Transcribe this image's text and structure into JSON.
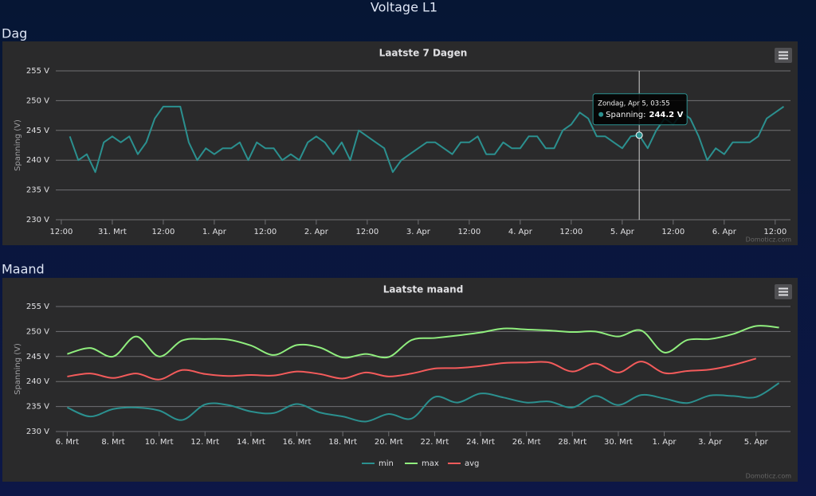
{
  "page": {
    "title": "Voltage L1",
    "sections": [
      "Dag",
      "Maand"
    ]
  },
  "chart_data": [
    {
      "type": "line",
      "title": "Laatste 7 Dagen",
      "y_label": "Spanning (V)",
      "credits": "Domoticz.com",
      "color": "#2b908f",
      "grid": true,
      "x": [
        2,
        4,
        6,
        8,
        10,
        12,
        14,
        16,
        18,
        20,
        22,
        24,
        26,
        28,
        30,
        32,
        34,
        36,
        38,
        40,
        42,
        44,
        46,
        48,
        50,
        52,
        54,
        56,
        58,
        60,
        62,
        64,
        66,
        68,
        70,
        72,
        74,
        76,
        78,
        80,
        82,
        84,
        86,
        88,
        90,
        92,
        94,
        96,
        98,
        100,
        102,
        104,
        106,
        108,
        110,
        112,
        114,
        116,
        118,
        120,
        122,
        124,
        126,
        128,
        130,
        132,
        134,
        136,
        138,
        140,
        142,
        144,
        146,
        148,
        150,
        152,
        154,
        156,
        158,
        160,
        162,
        164,
        166,
        168,
        170
      ],
      "values": [
        244,
        240,
        241,
        238,
        243,
        244,
        243,
        244,
        241,
        243,
        247,
        249,
        249,
        249,
        243,
        240,
        242,
        241,
        242,
        242,
        243,
        240,
        243,
        242,
        242,
        240,
        241,
        240,
        243,
        244,
        243,
        241,
        243,
        240,
        245,
        244,
        243,
        242,
        238,
        240,
        241,
        242,
        243,
        243,
        242,
        241,
        243,
        243,
        244,
        241,
        241,
        243,
        242,
        242,
        244,
        244,
        242,
        242,
        245,
        246,
        248,
        247,
        244,
        244,
        243,
        242,
        244,
        244.2,
        242,
        245,
        247,
        246,
        248,
        247,
        244,
        240,
        242,
        241,
        243,
        243,
        243,
        244,
        247,
        248,
        249
      ],
      "xlim": [
        -1.3,
        171.6
      ],
      "xticks": [
        {
          "value": 0,
          "label": "12:00"
        },
        {
          "value": 12,
          "label": "31. Mrt"
        },
        {
          "value": 24,
          "label": "12:00"
        },
        {
          "value": 36,
          "label": "1. Apr"
        },
        {
          "value": 48,
          "label": "12:00"
        },
        {
          "value": 60,
          "label": "2. Apr"
        },
        {
          "value": 72,
          "label": "12:00"
        },
        {
          "value": 84,
          "label": "3. Apr"
        },
        {
          "value": 96,
          "label": "12:00"
        },
        {
          "value": 108,
          "label": "4. Apr"
        },
        {
          "value": 120,
          "label": "12:00"
        },
        {
          "value": 132,
          "label": "5. Apr"
        },
        {
          "value": 144,
          "label": "12:00"
        },
        {
          "value": 156,
          "label": "6. Apr"
        },
        {
          "value": 168,
          "label": "12:00"
        }
      ],
      "ylim": [
        230,
        255
      ],
      "yticks": [
        {
          "value": 230,
          "label": "230 V"
        },
        {
          "value": 235,
          "label": "235 V"
        },
        {
          "value": 240,
          "label": "240 V"
        },
        {
          "value": 245,
          "label": "245 V"
        },
        {
          "value": 250,
          "label": "250 V"
        },
        {
          "value": 255,
          "label": "255 V"
        }
      ],
      "tooltip": {
        "x": 136,
        "value": 244.2,
        "header": "Zondag, Apr 5, 03:55",
        "label": "Spanning:",
        "value_label": "244.2 V"
      }
    },
    {
      "type": "line",
      "smooth": true,
      "title": "Laatste maand",
      "y_label": "Spanning (V)",
      "credits": "Domoticz.com",
      "grid": true,
      "legend": "bottom",
      "categories": [
        "6. Mrt",
        null,
        "8. Mrt",
        null,
        "10. Mrt",
        null,
        "12. Mrt",
        null,
        "14. Mrt",
        null,
        "16. Mrt",
        null,
        "18. Mrt",
        null,
        "20. Mrt",
        null,
        "22. Mrt",
        null,
        "24. Mrt",
        null,
        "26. Mrt",
        null,
        "28. Mrt",
        null,
        "30. Mrt",
        null,
        "1. Apr",
        null,
        "3. Apr",
        null,
        "5. Apr",
        null
      ],
      "series": [
        {
          "name": "min",
          "color": "#2b908f",
          "values": [
            234.8,
            233,
            234.5,
            234.8,
            234.2,
            232.3,
            235.4,
            235.3,
            234,
            233.7,
            235.5,
            233.8,
            233,
            232,
            233.5,
            232.6,
            236.9,
            235.8,
            237.6,
            236.8,
            235.8,
            236,
            234.8,
            237.1,
            235.3,
            237.3,
            236.6,
            235.7,
            237.2,
            237.1,
            236.9,
            239.7
          ]
        },
        {
          "name": "max",
          "color": "#90ee7e",
          "values": [
            245.5,
            246.7,
            245,
            249,
            245,
            248.2,
            248.5,
            248.4,
            247.2,
            245.3,
            247.3,
            246.8,
            244.8,
            245.5,
            244.9,
            248.3,
            248.7,
            249.2,
            249.8,
            250.6,
            250.4,
            250.2,
            249.9,
            250,
            249,
            250.2,
            245.8,
            248.3,
            248.5,
            249.5,
            251.1,
            250.8
          ]
        },
        {
          "name": "avg",
          "color": "#f45b5b",
          "values": [
            241,
            241.6,
            240.7,
            241.6,
            240.4,
            242.3,
            241.5,
            241.1,
            241.3,
            241.2,
            242,
            241.5,
            240.6,
            241.8,
            241,
            241.6,
            242.6,
            242.7,
            243.1,
            243.7,
            243.8,
            243.8,
            242,
            243.6,
            241.8,
            244,
            241.7,
            242.1,
            242.4,
            243.3,
            244.6,
            null
          ]
        }
      ],
      "ylim": [
        230,
        255
      ],
      "yticks": [
        {
          "value": 230,
          "label": "230 V"
        },
        {
          "value": 235,
          "label": "235 V"
        },
        {
          "value": 240,
          "label": "240 V"
        },
        {
          "value": 245,
          "label": "245 V"
        },
        {
          "value": 250,
          "label": "250 V"
        },
        {
          "value": 255,
          "label": "255 V"
        }
      ]
    }
  ]
}
